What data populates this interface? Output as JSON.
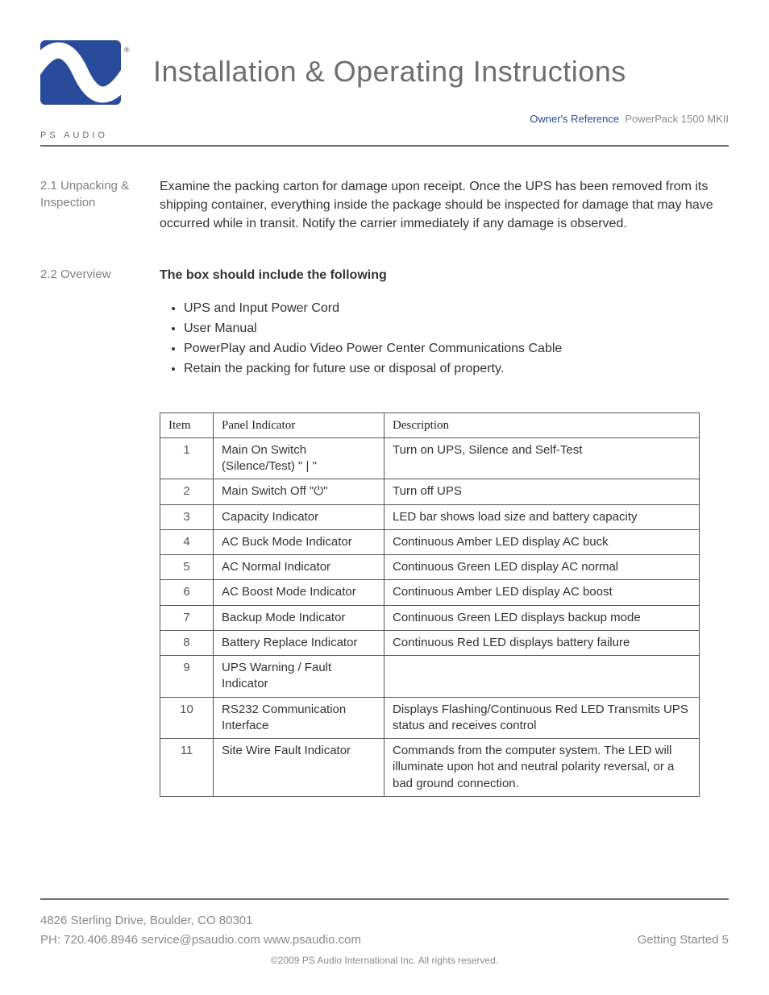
{
  "brand_text": "PS AUDIO",
  "page_title": "Installation & Operating Instructions",
  "reference_label": "Owner's Reference",
  "reference_model": "PowerPack 1500 MKII",
  "sections": {
    "s1": {
      "label": "2.1 Unpacking & Inspection",
      "body": "Examine the packing carton for damage upon receipt.  Once the UPS has been removed from its shipping container, everything inside the package should be inspected for damage that may have occurred while in transit.  Notify the carrier immediately if any damage is observed."
    },
    "s2": {
      "label": "2.2 Overview",
      "heading": "The box should include the following",
      "items": [
        "UPS and Input Power Cord",
        "User Manual",
        "PowerPlay and Audio Video Power Center Communications Cable",
        "Retain the packing for future use or disposal of property."
      ]
    }
  },
  "table": {
    "headers": [
      "Item",
      "Panel Indicator",
      "Description"
    ],
    "rows": [
      {
        "item": "1",
        "panel": "Main On Switch (Silence/Test) \" | \"",
        "desc": "Turn on UPS, Silence and Self-Test"
      },
      {
        "item": "2",
        "panel": "Main Switch Off \"⏻\"",
        "desc": "Turn off UPS"
      },
      {
        "item": "3",
        "panel": "Capacity Indicator",
        "desc": "LED bar shows load size and battery capacity"
      },
      {
        "item": "4",
        "panel": "AC Buck Mode Indicator",
        "desc": "Continuous Amber LED display AC buck"
      },
      {
        "item": "5",
        "panel": "AC Normal Indicator",
        "desc": "Continuous Green LED display  AC normal"
      },
      {
        "item": "6",
        "panel": "AC Boost Mode Indicator",
        "desc": "Continuous Amber LED display AC boost"
      },
      {
        "item": "7",
        "panel": "Backup Mode Indicator",
        "desc": "Continuous Green LED displays backup mode"
      },
      {
        "item": "8",
        "panel": "Battery Replace Indicator",
        "desc": "Continuous Red LED displays battery failure"
      },
      {
        "item": "9",
        "panel": "UPS Warning / Fault Indicator",
        "desc": "",
        "tall": true
      },
      {
        "item": "10",
        "panel": "RS232 Communication Interface",
        "desc": "Displays Flashing/Continuous Red LED Transmits UPS status and receives control"
      },
      {
        "item": "11",
        "panel": "Site Wire Fault Indicator",
        "desc": "Commands from the computer system.  The LED will illuminate upon hot and neutral polarity reversal, or a bad ground connection."
      }
    ]
  },
  "footer": {
    "address": "4826 Sterling Drive, Boulder, CO 80301",
    "contact": "PH: 720.406.8946 service@psaudio.com www.psaudio.com",
    "right": "Getting Started 5",
    "copyright": "©2009 PS Audio International Inc.  All rights reserved."
  },
  "colors": {
    "brand_blue": "#2a4b9b",
    "title_gray": "#6e6e6e",
    "side_gray": "#808080",
    "text": "#333333"
  }
}
